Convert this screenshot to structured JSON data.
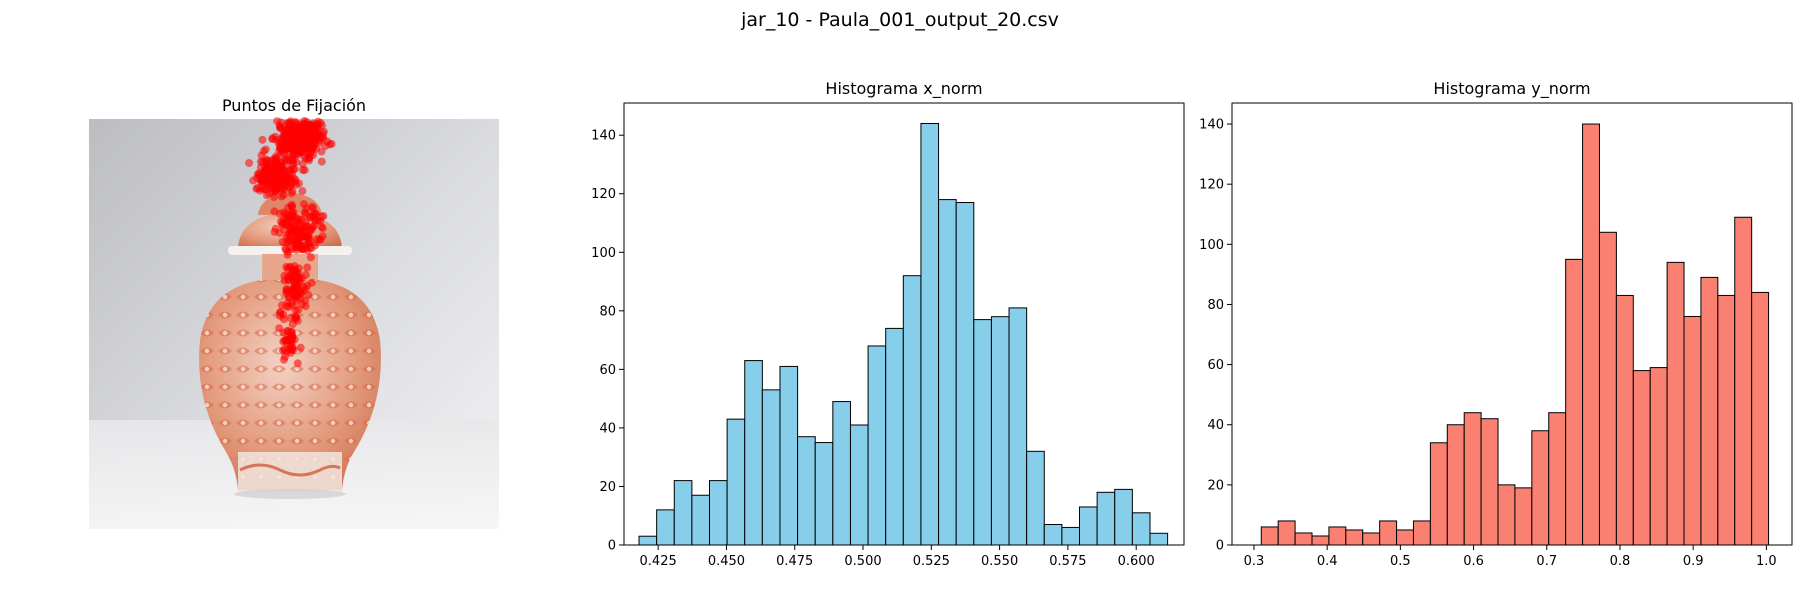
{
  "figure": {
    "suptitle": "jar_10 - Paula_001_output_20.csv"
  },
  "chart_data": [
    {
      "type": "scatter",
      "title": "Puntos de Fijación",
      "background": "photo",
      "background_subject": "red-and-white porcelain jar",
      "marker_color": "#ff0000",
      "description_of_points": "dense fixation cluster near the top of the image around the lid and neck, thinning downward into the upper body of the jar",
      "axes_visible": false
    },
    {
      "type": "bar",
      "title": "Histograma x_norm",
      "xlabel": "",
      "ylabel": "",
      "bar_color": "#87ceeb",
      "edge_color": "#000000",
      "xlim": [
        0.4125,
        0.6175
      ],
      "ylim": [
        0,
        151
      ],
      "xticks": [
        "0.425",
        "0.450",
        "0.475",
        "0.500",
        "0.525",
        "0.550",
        "0.575",
        "0.600"
      ],
      "xtick_values": [
        0.425,
        0.45,
        0.475,
        0.5,
        0.525,
        0.55,
        0.575,
        0.6
      ],
      "yticks": [
        0,
        20,
        40,
        60,
        80,
        100,
        120,
        140
      ],
      "bin_start": 0.418,
      "bin_width": 0.00645,
      "values": [
        3,
        12,
        22,
        17,
        22,
        43,
        63,
        53,
        61,
        37,
        35,
        49,
        41,
        68,
        74,
        92,
        144,
        118,
        117,
        77,
        78,
        81,
        32,
        7,
        6,
        13,
        18,
        19,
        11,
        4
      ]
    },
    {
      "type": "bar",
      "title": "Histograma y_norm",
      "xlabel": "",
      "ylabel": "",
      "bar_color": "#fa8072",
      "edge_color": "#000000",
      "xlim": [
        0.27,
        1.035
      ],
      "ylim": [
        0,
        147
      ],
      "xticks": [
        "0.3",
        "0.4",
        "0.5",
        "0.6",
        "0.7",
        "0.8",
        "0.9",
        "1.0"
      ],
      "xtick_values": [
        0.3,
        0.4,
        0.5,
        0.6,
        0.7,
        0.8,
        0.9,
        1.0
      ],
      "yticks": [
        0,
        20,
        40,
        60,
        80,
        100,
        120,
        140
      ],
      "bin_start": 0.31,
      "bin_width": 0.0231,
      "values": [
        6,
        8,
        4,
        3,
        6,
        5,
        4,
        8,
        5,
        8,
        34,
        40,
        44,
        42,
        20,
        19,
        38,
        44,
        95,
        140,
        104,
        83,
        58,
        59,
        94,
        76,
        89,
        83,
        109,
        84
      ]
    }
  ]
}
